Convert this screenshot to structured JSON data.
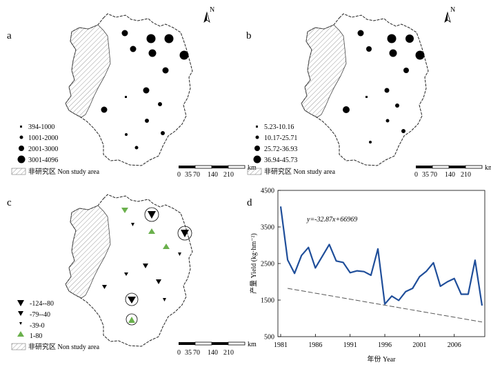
{
  "north_label": "N",
  "non_study_label": "非研究区 Non study area",
  "scale": {
    "ticks": [
      "0",
      "35",
      "70",
      "140",
      "210"
    ],
    "unit": "km"
  },
  "panel_a": {
    "label": "a",
    "legend": [
      "394-1000",
      "1001-2000",
      "2001-3000",
      "3001-4096"
    ]
  },
  "panel_b": {
    "label": "b",
    "legend": [
      "5.23-10.16",
      "10.17-25.71",
      "25.72-36.93",
      "36.94-45.73"
    ]
  },
  "panel_c": {
    "label": "c",
    "legend": [
      "-124--80",
      "-79--40",
      "-39-0",
      "1-80"
    ]
  },
  "panel_d": {
    "label": "d",
    "equation": "y=-32.87x+66969",
    "ylabel": "产量 Yield (kg·hm⁻²)",
    "xlabel": "年份 Year"
  },
  "colors": {
    "line": "#1f4e9a",
    "up_triangle": "#6ab04c",
    "hatch": "#999999"
  },
  "chart_data": {
    "type": "line",
    "title": "",
    "xlabel": "年份 Year",
    "ylabel": "产量 Yield (kg·hm⁻²)",
    "xlim": [
      1981,
      2010
    ],
    "ylim": [
      500,
      4500
    ],
    "xticks": [
      1981,
      1986,
      1991,
      1996,
      2001,
      2006
    ],
    "yticks": [
      500,
      1500,
      2500,
      3500,
      4500
    ],
    "x": [
      1981,
      1982,
      1983,
      1984,
      1985,
      1986,
      1987,
      1988,
      1989,
      1990,
      1991,
      1992,
      1993,
      1994,
      1995,
      1996,
      1997,
      1998,
      1999,
      2000,
      2001,
      2002,
      2003,
      2004,
      2005,
      2006,
      2007,
      2008,
      2009,
      2010
    ],
    "series": [
      {
        "values": [
          4060,
          2600,
          2230,
          2720,
          2940,
          2380,
          2700,
          3020,
          2570,
          2530,
          2250,
          2300,
          2280,
          2180,
          2900,
          1390,
          1610,
          1490,
          1730,
          1820,
          2140,
          2290,
          2520,
          1880,
          2000,
          2090,
          1660,
          1660,
          2590,
          1350
        ]
      }
    ],
    "trend": {
      "label": "y=-32.87x+66969",
      "slope": -32.87,
      "intercept": 66969
    }
  }
}
